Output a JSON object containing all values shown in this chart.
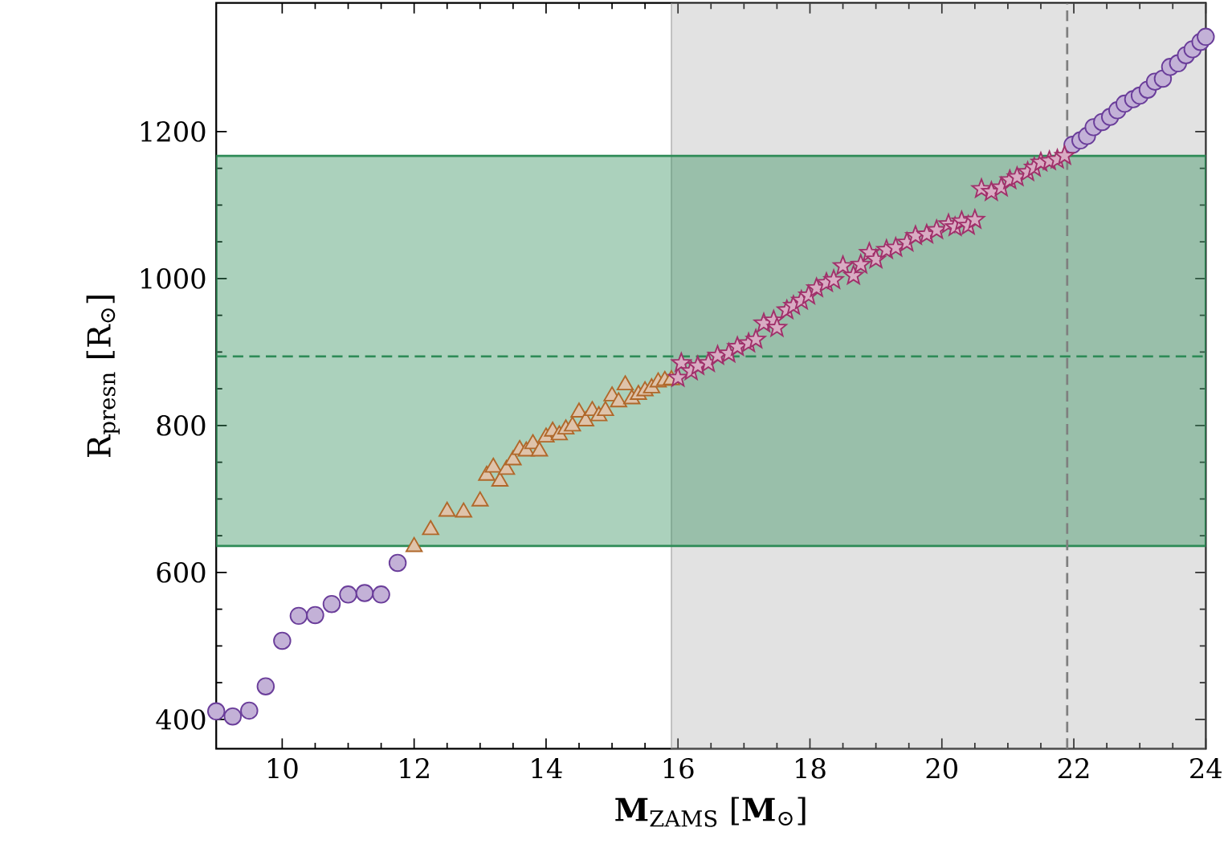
{
  "chart_data": {
    "type": "scatter",
    "xlabel": "**M**$_{ZAMS}$ [**M**$_{⊙}$]",
    "ylabel": "R$_{presn}$ [R$_{⊙}$]",
    "xlim": [
      9,
      24
    ],
    "ylim": [
      360,
      1375
    ],
    "xticks": [
      10,
      12,
      14,
      16,
      18,
      20,
      22,
      24
    ],
    "yticks": [
      400,
      600,
      800,
      1000,
      1200
    ],
    "grid": false,
    "bands": [
      {
        "axis": "x",
        "from": 15.9,
        "to": 24,
        "color": "#9e9e9e"
      },
      {
        "axis": "y",
        "from": 636,
        "to": 1167,
        "color": "#2e8b57"
      }
    ],
    "ref_lines": [
      {
        "axis": "y",
        "value": 894,
        "color": "#2e8b57",
        "line_style": "dashed"
      },
      {
        "axis": "x",
        "value": 21.9,
        "color": "#7f7f7f",
        "line_style": "dashed"
      }
    ],
    "series": [
      {
        "color": "#6a3d9a",
        "marker": "circle",
        "x": [
          9.0,
          9.25,
          9.5,
          9.75,
          10.0,
          10.25,
          10.5,
          10.75,
          11.0,
          11.25,
          11.5,
          11.75,
          21.98,
          22.1,
          22.2,
          22.3,
          22.43,
          22.55,
          22.66,
          22.77,
          22.9,
          23.0,
          23.12,
          23.23,
          23.35,
          23.46,
          23.58,
          23.7,
          23.8,
          23.92,
          24.0
        ],
        "values": [
          411,
          404,
          412,
          445,
          507,
          541,
          542,
          557,
          570,
          572,
          570,
          613,
          1182,
          1188,
          1194,
          1206,
          1213,
          1220,
          1229,
          1238,
          1244,
          1249,
          1257,
          1268,
          1272,
          1288,
          1293,
          1304,
          1312,
          1322,
          1329
        ]
      },
      {
        "color": "#b0682a",
        "marker": "triangle",
        "x": [
          12.0,
          12.25,
          12.5,
          12.75,
          13.0,
          13.1,
          13.2,
          13.3,
          13.4,
          13.5,
          13.6,
          13.7,
          13.8,
          13.9,
          14.0,
          14.1,
          14.2,
          14.3,
          14.4,
          14.5,
          14.6,
          14.7,
          14.8,
          14.9,
          15.0,
          15.1,
          15.2,
          15.3,
          15.4,
          15.5,
          15.6,
          15.7,
          15.8,
          15.9
        ],
        "values": [
          635,
          658,
          683,
          682,
          697,
          732,
          743,
          724,
          740,
          753,
          767,
          765,
          775,
          765,
          784,
          792,
          787,
          795,
          799,
          818,
          806,
          820,
          813,
          820,
          840,
          832,
          855,
          836,
          842,
          847,
          851,
          859,
          861,
          862
        ]
      },
      {
        "color": "#a0306a",
        "marker": "star",
        "x": [
          16.0,
          16.05,
          16.2,
          16.3,
          16.46,
          16.6,
          16.77,
          16.9,
          17.07,
          17.18,
          17.3,
          17.45,
          17.5,
          17.65,
          17.75,
          17.87,
          17.98,
          18.1,
          18.25,
          18.36,
          18.5,
          18.66,
          18.77,
          18.9,
          19.0,
          19.16,
          19.3,
          19.47,
          19.6,
          19.77,
          19.92,
          20.1,
          20.2,
          20.3,
          20.4,
          20.5,
          20.6,
          20.75,
          20.9,
          21.03,
          21.14,
          21.3,
          21.4,
          21.5,
          21.63,
          21.75,
          21.86
        ],
        "values": [
          865,
          885,
          874,
          881,
          885,
          895,
          898,
          907,
          912,
          917,
          939,
          943,
          933,
          957,
          963,
          970,
          977,
          987,
          994,
          998,
          1017,
          1004,
          1019,
          1035,
          1026,
          1039,
          1042,
          1049,
          1058,
          1060,
          1066,
          1074,
          1070,
          1078,
          1072,
          1080,
          1122,
          1118,
          1124,
          1134,
          1138,
          1145,
          1151,
          1158,
          1160,
          1162,
          1167
        ]
      }
    ]
  }
}
